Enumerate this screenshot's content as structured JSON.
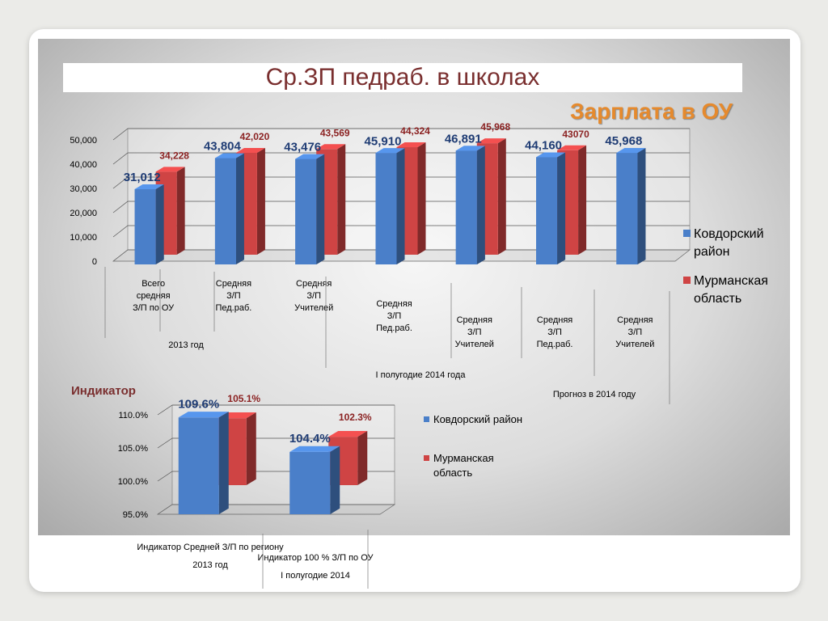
{
  "slide": {
    "title": "Ср.ЗП педраб. в школах",
    "subtitle": "Зарплата в ОУ"
  },
  "colors": {
    "series1": "#4a7fc9",
    "series2": "#cf4444",
    "value1": "#1f3c74",
    "value2": "#8b2222"
  },
  "chart_data": [
    {
      "type": "bar",
      "title": "",
      "categories": [
        [
          "Всего",
          "средняя",
          "З/П по ОУ"
        ],
        [
          "Средняя",
          "З/П",
          "Пед.раб."
        ],
        [
          "Средняя",
          "З/П",
          "Учителей"
        ],
        [
          "Средняя",
          "З/П",
          "Пед.раб."
        ],
        [
          "Средняя",
          "З/П",
          "Учителей"
        ],
        [
          "Средняя",
          "З/П",
          "Пед.раб."
        ],
        [
          "Средняя",
          "З/П",
          "Учителей"
        ]
      ],
      "groups": [
        {
          "label": "2013 год",
          "span": [
            0,
            2
          ]
        },
        {
          "label": "I полугодие 2014 года",
          "span": [
            3,
            3
          ]
        },
        {
          "label": "Прогноз в 2014 году",
          "span": [
            4,
            6
          ]
        }
      ],
      "series": [
        {
          "name": "Ковдорский район",
          "values": [
            31012,
            43804,
            43476,
            45910,
            46891,
            44160,
            45968
          ],
          "labels": [
            "31,012",
            "43,804",
            "43,476",
            "45,910",
            "46,891",
            "44,160",
            "45,968"
          ]
        },
        {
          "name": "Мурманская область",
          "values": [
            34228,
            42020,
            43569,
            44324,
            45968,
            43070,
            null
          ],
          "labels": [
            "34,228",
            "42,020",
            "43,569",
            "44,324",
            "45,968",
            "43070",
            ""
          ]
        }
      ],
      "yticks": [
        "50,000",
        "40,000",
        "30,000",
        "20,000",
        "10,000",
        "0"
      ],
      "ylim": [
        0,
        50000
      ],
      "legend_position": "right"
    },
    {
      "type": "bar",
      "title": "Индикатор",
      "categories": [
        [
          "Индикатор Средней З/П по региону",
          "2013 год"
        ],
        [
          "Индикатор 100 % З/П по ОУ",
          "I полугодие 2014"
        ]
      ],
      "series": [
        {
          "name": "Ковдорский район",
          "values": [
            109.6,
            104.4
          ],
          "labels": [
            "109.6%",
            "104.4%"
          ]
        },
        {
          "name": "Мурманская область",
          "values": [
            105.1,
            102.3
          ],
          "labels": [
            "105.1%",
            "102.3%"
          ]
        }
      ],
      "yticks": [
        "110.0%",
        "105.0%",
        "100.0%",
        "95.0%"
      ],
      "ylim": [
        95,
        110
      ],
      "legend_position": "right"
    }
  ]
}
